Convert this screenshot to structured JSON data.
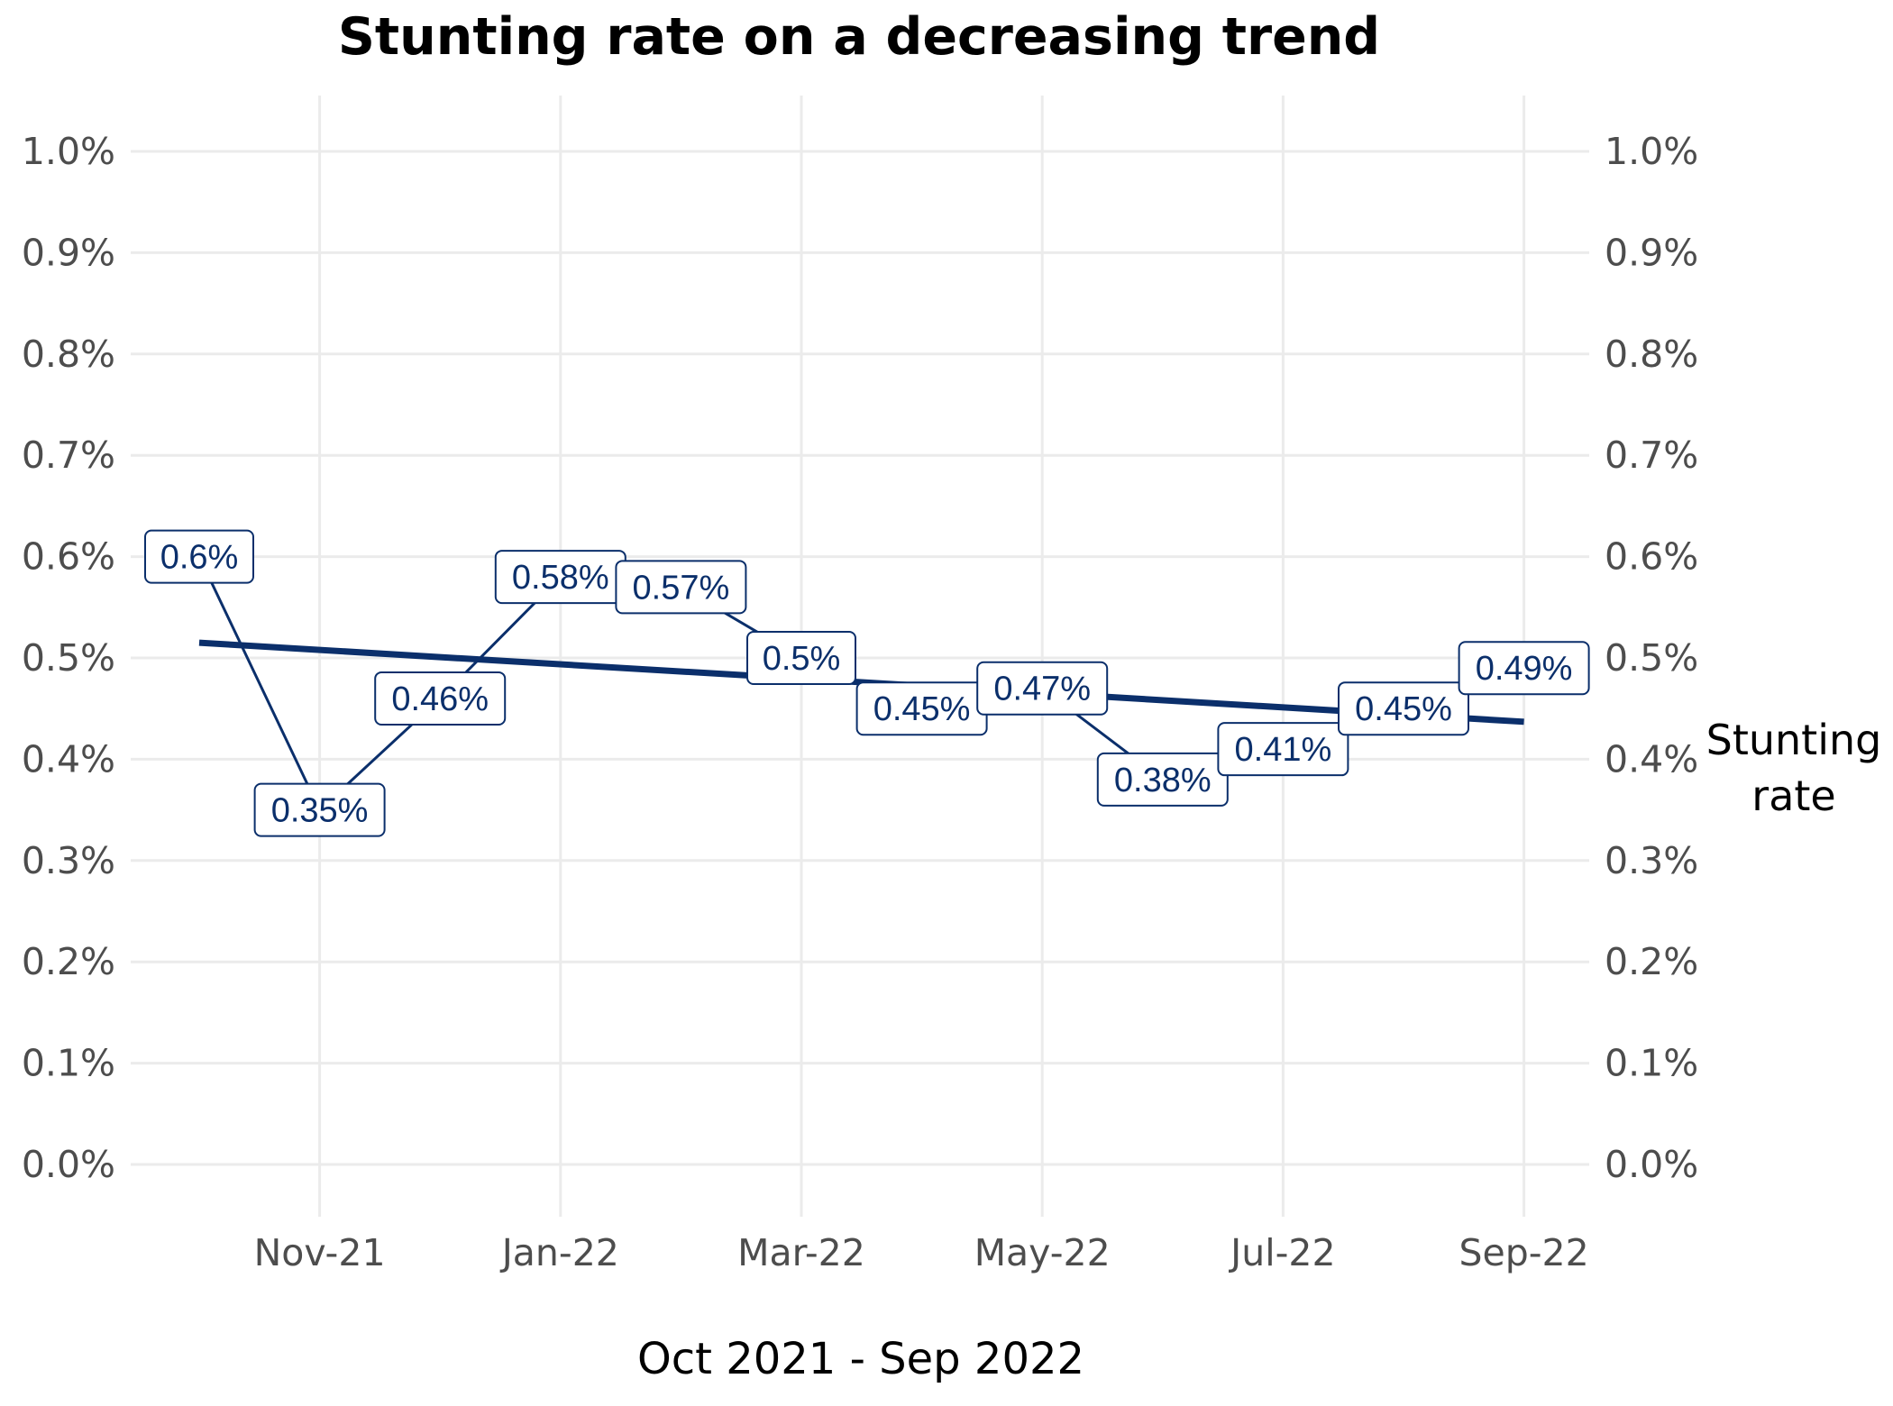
{
  "chart_data": {
    "type": "line",
    "title": "Stunting rate on a decreasing trend",
    "xlabel": "Oct 2021 - Sep 2022",
    "ylabel": "",
    "legend_label": [
      "Stunting",
      "rate"
    ],
    "x_tick_labels": [
      "Nov-21",
      "Jan-22",
      "Mar-22",
      "May-22",
      "Jul-22",
      "Sep-22"
    ],
    "y_tick_labels": [
      "0.0%",
      "0.1%",
      "0.2%",
      "0.3%",
      "0.4%",
      "0.5%",
      "0.6%",
      "0.7%",
      "0.8%",
      "0.9%",
      "1.0%"
    ],
    "y_axis_position": "both",
    "ylim": [
      0,
      1.0
    ],
    "grid": true,
    "x": [
      "2021-10",
      "2021-11",
      "2021-12",
      "2022-01",
      "2022-02",
      "2022-03",
      "2022-04",
      "2022-05",
      "2022-06",
      "2022-07",
      "2022-08",
      "2022-09"
    ],
    "series": [
      {
        "name": "Stunting rate",
        "values": [
          0.6,
          0.35,
          0.46,
          0.58,
          0.57,
          0.5,
          0.45,
          0.47,
          0.38,
          0.41,
          0.45,
          0.49
        ],
        "labels": [
          "0.6%",
          "0.35%",
          "0.46%",
          "0.58%",
          "0.57%",
          "0.5%",
          "0.45%",
          "0.47%",
          "0.38%",
          "0.41%",
          "0.45%",
          "0.49%"
        ],
        "color": "#0b2f6b"
      }
    ],
    "trend": {
      "start": 0.515,
      "end": 0.437,
      "color": "#0b2f6b"
    }
  }
}
